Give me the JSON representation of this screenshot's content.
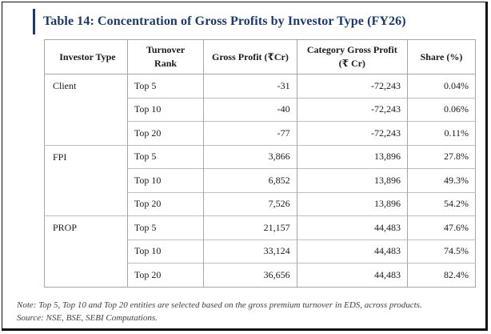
{
  "title": "Table 14: Concentration of Gross Profits by Investor Type (FY26)",
  "headers": {
    "investor_type": "Investor Type",
    "turnover_rank_1": "Turnover",
    "turnover_rank_2": "Rank",
    "gross_profit": "Gross Profit (₹Cr)",
    "category_gross_profit_1": "Category Gross Profit",
    "category_gross_profit_2": "(₹ Cr)",
    "share": "Share (%)"
  },
  "rows": [
    {
      "investor": "Client",
      "rank": "Top 5",
      "gross_profit": "-31",
      "category": "-72,243",
      "share": "0.04%"
    },
    {
      "investor": "",
      "rank": "Top 10",
      "gross_profit": "-40",
      "category": "-72,243",
      "share": "0.06%"
    },
    {
      "investor": "",
      "rank": "Top 20",
      "gross_profit": "-77",
      "category": "-72,243",
      "share": "0.11%"
    },
    {
      "investor": "FPI",
      "rank": "Top 5",
      "gross_profit": "3,866",
      "category": "13,896",
      "share": "27.8%"
    },
    {
      "investor": "",
      "rank": "Top 10",
      "gross_profit": "6,852",
      "category": "13,896",
      "share": "49.3%"
    },
    {
      "investor": "",
      "rank": "Top 20",
      "gross_profit": "7,526",
      "category": "13,896",
      "share": "54.2%"
    },
    {
      "investor": "PROP",
      "rank": "Top 5",
      "gross_profit": "21,157",
      "category": "44,483",
      "share": "47.6%"
    },
    {
      "investor": "",
      "rank": "Top 10",
      "gross_profit": "33,124",
      "category": "44,483",
      "share": "74.5%"
    },
    {
      "investor": "",
      "rank": "Top 20",
      "gross_profit": "36,656",
      "category": "44,483",
      "share": "82.4%"
    }
  ],
  "note": "Note: Top 5, Top 10 and Top 20 entities are selected based on the gross premium turnover in EDS, across products.",
  "source": "Source: NSE, BSE, SEBI Computations."
}
